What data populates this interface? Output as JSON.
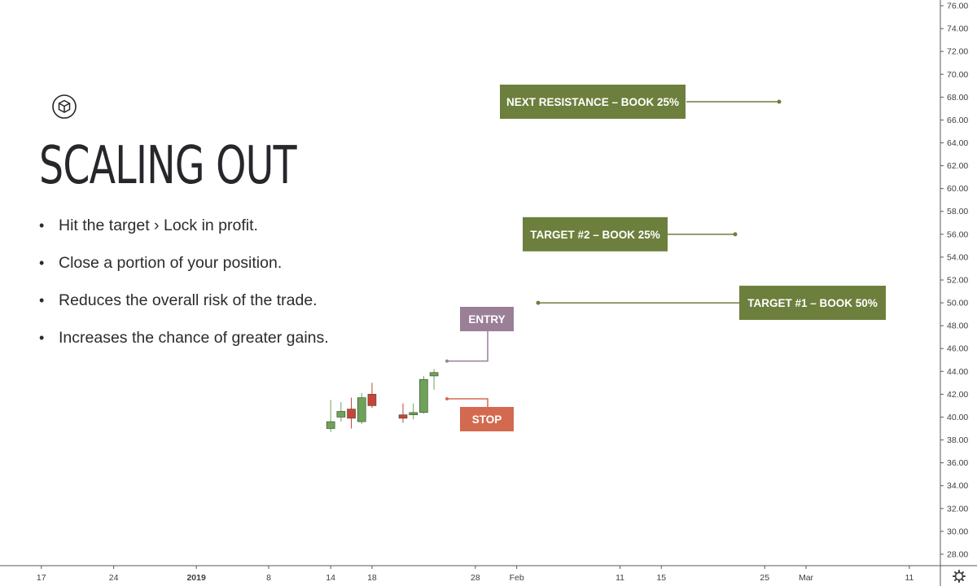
{
  "slide": {
    "title": "SCALING OUT",
    "bullets": [
      "Hit the target › Lock in profit.",
      "Close a portion of your position.",
      "Reduces the overall risk of the trade.",
      "Increases the chance of greater gains."
    ],
    "logo_icon": "cube-icon"
  },
  "chart_data": {
    "type": "candlestick",
    "y_axis": {
      "range": [
        27,
        76.5
      ],
      "ticks": [
        28,
        30,
        32,
        34,
        36,
        38,
        40,
        42,
        44,
        46,
        48,
        50,
        52,
        54,
        56,
        58,
        60,
        62,
        64,
        66,
        68,
        70,
        72,
        74,
        76
      ],
      "side": "right"
    },
    "x_axis": {
      "range": [
        "2018-12-13",
        "2019-03-14"
      ],
      "ticks": [
        {
          "date": "2018-12-17",
          "label": "17"
        },
        {
          "date": "2018-12-24",
          "label": "24"
        },
        {
          "date": "2019-01-01",
          "label": "2019",
          "bold": true
        },
        {
          "date": "2019-01-08",
          "label": "8"
        },
        {
          "date": "2019-01-14",
          "label": "14"
        },
        {
          "date": "2019-01-18",
          "label": "18"
        },
        {
          "date": "2019-01-28",
          "label": "28"
        },
        {
          "date": "2019-02-01",
          "label": "Feb"
        },
        {
          "date": "2019-02-11",
          "label": "11"
        },
        {
          "date": "2019-02-15",
          "label": "15"
        },
        {
          "date": "2019-02-25",
          "label": "25"
        },
        {
          "date": "2019-03-01",
          "label": "Mar"
        },
        {
          "date": "2019-03-11",
          "label": "11"
        }
      ]
    },
    "candles": [
      {
        "date": "2019-01-14",
        "open": 39.0,
        "high": 41.5,
        "low": 38.7,
        "close": 39.6
      },
      {
        "date": "2019-01-15",
        "open": 40.0,
        "high": 41.3,
        "low": 39.6,
        "close": 40.5
      },
      {
        "date": "2019-01-16",
        "open": 40.7,
        "high": 41.7,
        "low": 39.0,
        "close": 39.9
      },
      {
        "date": "2019-01-17",
        "open": 39.6,
        "high": 42.1,
        "low": 39.4,
        "close": 41.7
      },
      {
        "date": "2019-01-18",
        "open": 42.0,
        "high": 43.0,
        "low": 40.8,
        "close": 41.0
      },
      {
        "date": "2019-01-21",
        "open": 40.2,
        "high": 41.2,
        "low": 39.5,
        "close": 39.9
      },
      {
        "date": "2019-01-22",
        "open": 40.2,
        "high": 41.2,
        "low": 39.8,
        "close": 40.4
      },
      {
        "date": "2019-01-23",
        "open": 40.4,
        "high": 43.6,
        "low": 40.3,
        "close": 43.3
      },
      {
        "date": "2019-01-24",
        "open": 43.6,
        "high": 44.2,
        "low": 42.4,
        "close": 43.9
      }
    ],
    "up_color": "#6fa15a",
    "down_color": "#c8443a",
    "annotations": [
      {
        "label": "NEXT RESISTANCE – BOOK 25%",
        "price": 67.6,
        "color": "#6d7f3c"
      },
      {
        "label": "TARGET #2 – BOOK 25%",
        "price": 56.0,
        "color": "#6d7f3c"
      },
      {
        "label": "TARGET #1 – BOOK 50%",
        "price": 50.0,
        "color": "#6d7f3c"
      },
      {
        "label": "ENTRY",
        "price": 44.9,
        "color": "#9a7f97"
      },
      {
        "label": "STOP",
        "price": 41.6,
        "color": "#d36a4f"
      }
    ],
    "settings_icon": "gear-icon"
  }
}
